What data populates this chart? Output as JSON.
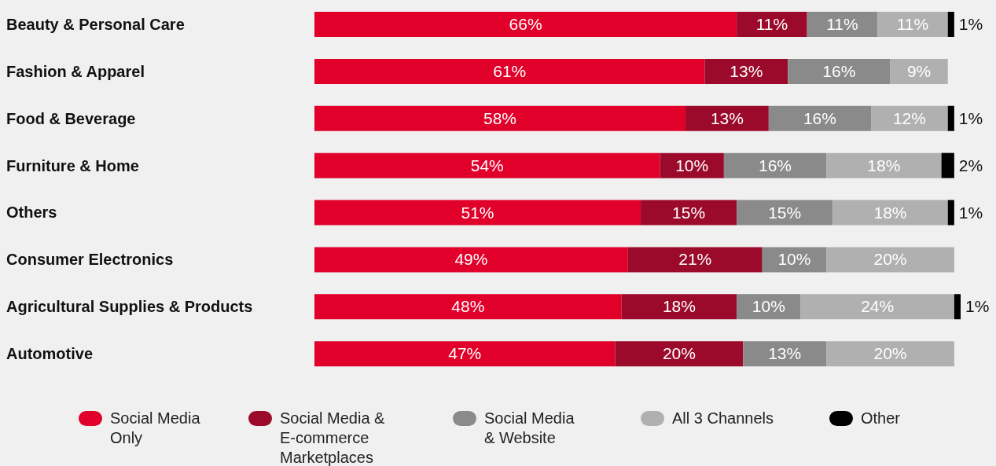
{
  "chart_data": {
    "type": "bar",
    "orientation": "horizontal",
    "stacked": true,
    "tick_labels": "y",
    "xlim": [
      0,
      101
    ],
    "legend": "bottom",
    "categories": [
      "Beauty & Personal Care",
      "Fashion & Apparel",
      "Food & Beverage",
      "Furniture & Home",
      "Others",
      "Consumer Electronics",
      "Agricultural Supplies & Products",
      "Automotive"
    ],
    "series": [
      {
        "name": "Social Media Only",
        "color": "#e0002a",
        "values": [
          66,
          61,
          58,
          54,
          51,
          49,
          48,
          47
        ],
        "value_labels": [
          "66%",
          "61%",
          "58%",
          "54%",
          "51%",
          "49%",
          "48%",
          "47%"
        ]
      },
      {
        "name": "Social Media & E-commerce Marketplaces",
        "color": "#9b0a2a",
        "values": [
          11,
          13,
          13,
          10,
          15,
          21,
          18,
          20
        ],
        "value_labels": [
          "11%",
          "13%",
          "13%",
          "10%",
          "15%",
          "21%",
          "18%",
          "20%"
        ]
      },
      {
        "name": "Social Media & Website",
        "color": "#8a8a8a",
        "values": [
          11,
          16,
          16,
          16,
          15,
          10,
          10,
          13
        ],
        "value_labels": [
          "11%",
          "16%",
          "16%",
          "16%",
          "15%",
          "10%",
          "10%",
          "13%"
        ]
      },
      {
        "name": "All 3 Channels",
        "color": "#b0b0b0",
        "values": [
          11,
          9,
          12,
          18,
          18,
          20,
          24,
          20
        ],
        "value_labels": [
          "11%",
          "9%",
          "12%",
          "18%",
          "18%",
          "20%",
          "24%",
          "20%"
        ]
      },
      {
        "name": "Other",
        "color": "#000000",
        "values": [
          1,
          null,
          1,
          2,
          1,
          null,
          1,
          null
        ],
        "value_labels": [
          "1%",
          null,
          "1%",
          "2%",
          "1%",
          null,
          "1%",
          null
        ]
      }
    ]
  }
}
